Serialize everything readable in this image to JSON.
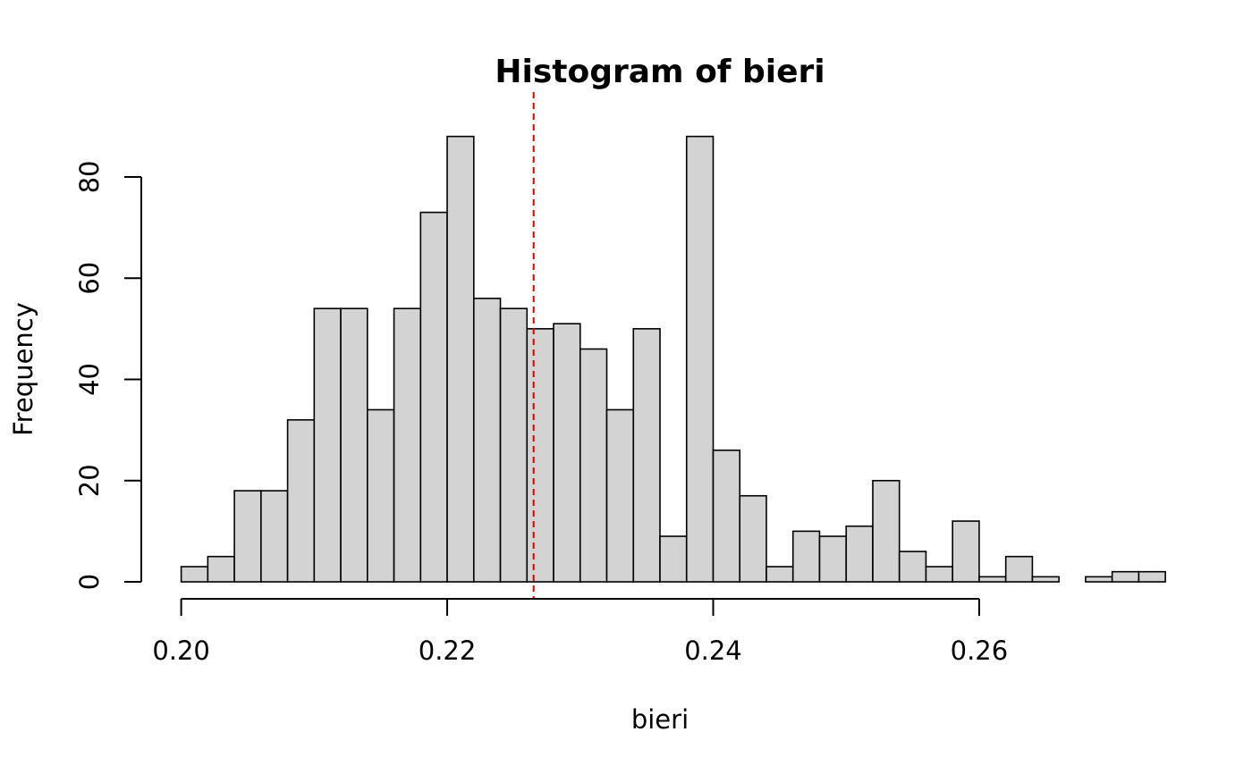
{
  "chart_data": {
    "type": "bar",
    "title": "Histogram of bieri",
    "xlabel": "bieri",
    "ylabel": "Frequency",
    "bin_start": 0.2,
    "bin_width": 0.002,
    "counts": [
      3,
      5,
      18,
      18,
      32,
      54,
      54,
      34,
      54,
      73,
      88,
      56,
      54,
      50,
      51,
      46,
      34,
      50,
      9,
      88,
      26,
      17,
      3,
      10,
      9,
      11,
      20,
      6,
      3,
      12,
      1,
      5,
      1,
      0,
      1,
      2,
      2
    ],
    "x_ticks": [
      0.2,
      0.22,
      0.24,
      0.26
    ],
    "x_tick_labels": [
      "0.20",
      "0.22",
      "0.24",
      "0.26"
    ],
    "y_ticks": [
      0,
      20,
      40,
      60,
      80
    ],
    "y_tick_labels": [
      "0",
      "20",
      "40",
      "60",
      "80"
    ],
    "xlim": [
      0.197,
      0.275
    ],
    "ylim": [
      0,
      92
    ],
    "reference_line": {
      "x": 0.2265,
      "style": "dashed",
      "color": "#dd0000"
    },
    "bar_fill": "#d3d3d3",
    "grid": false,
    "legend": "none"
  }
}
